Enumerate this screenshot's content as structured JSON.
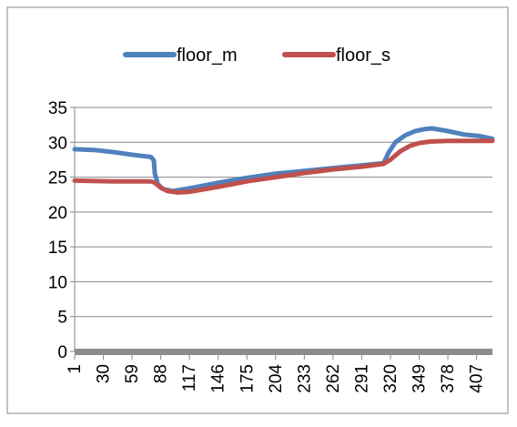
{
  "chart_data": {
    "type": "line",
    "title": "",
    "xlabel": "",
    "ylabel": "",
    "x_tick_labels": [
      "1",
      "30",
      "59",
      "88",
      "117",
      "146",
      "175",
      "204",
      "233",
      "262",
      "291",
      "320",
      "349",
      "378",
      "407"
    ],
    "x_range": [
      1,
      423
    ],
    "y_ticks": [
      0,
      5,
      10,
      15,
      20,
      25,
      30,
      35
    ],
    "ylim": [
      0,
      35
    ],
    "grid": "horizontal",
    "legend_position": "top",
    "series": [
      {
        "name": "floor_m",
        "color": "#4F81BD",
        "points": [
          [
            1,
            29.0
          ],
          [
            20,
            28.9
          ],
          [
            40,
            28.6
          ],
          [
            60,
            28.2
          ],
          [
            78,
            27.9
          ],
          [
            81,
            27.4
          ],
          [
            82,
            25.5
          ],
          [
            85,
            24.0
          ],
          [
            90,
            23.3
          ],
          [
            100,
            23.0
          ],
          [
            117,
            23.4
          ],
          [
            146,
            24.2
          ],
          [
            175,
            24.9
          ],
          [
            204,
            25.5
          ],
          [
            233,
            25.9
          ],
          [
            262,
            26.3
          ],
          [
            291,
            26.7
          ],
          [
            313,
            27.0
          ],
          [
            318,
            28.5
          ],
          [
            325,
            30.0
          ],
          [
            335,
            31.0
          ],
          [
            345,
            31.6
          ],
          [
            355,
            31.9
          ],
          [
            362,
            32.0
          ],
          [
            378,
            31.6
          ],
          [
            395,
            31.1
          ],
          [
            410,
            30.9
          ],
          [
            423,
            30.5
          ]
        ]
      },
      {
        "name": "floor_s",
        "color": "#C0504D",
        "points": [
          [
            1,
            24.5
          ],
          [
            40,
            24.4
          ],
          [
            78,
            24.4
          ],
          [
            82,
            24.2
          ],
          [
            88,
            23.5
          ],
          [
            95,
            23.0
          ],
          [
            105,
            22.8
          ],
          [
            117,
            22.9
          ],
          [
            146,
            23.6
          ],
          [
            175,
            24.4
          ],
          [
            204,
            25.0
          ],
          [
            233,
            25.6
          ],
          [
            262,
            26.1
          ],
          [
            291,
            26.5
          ],
          [
            313,
            26.9
          ],
          [
            320,
            27.5
          ],
          [
            330,
            28.7
          ],
          [
            340,
            29.5
          ],
          [
            349,
            29.9
          ],
          [
            360,
            30.1
          ],
          [
            378,
            30.2
          ],
          [
            407,
            30.2
          ],
          [
            423,
            30.2
          ]
        ]
      }
    ]
  }
}
